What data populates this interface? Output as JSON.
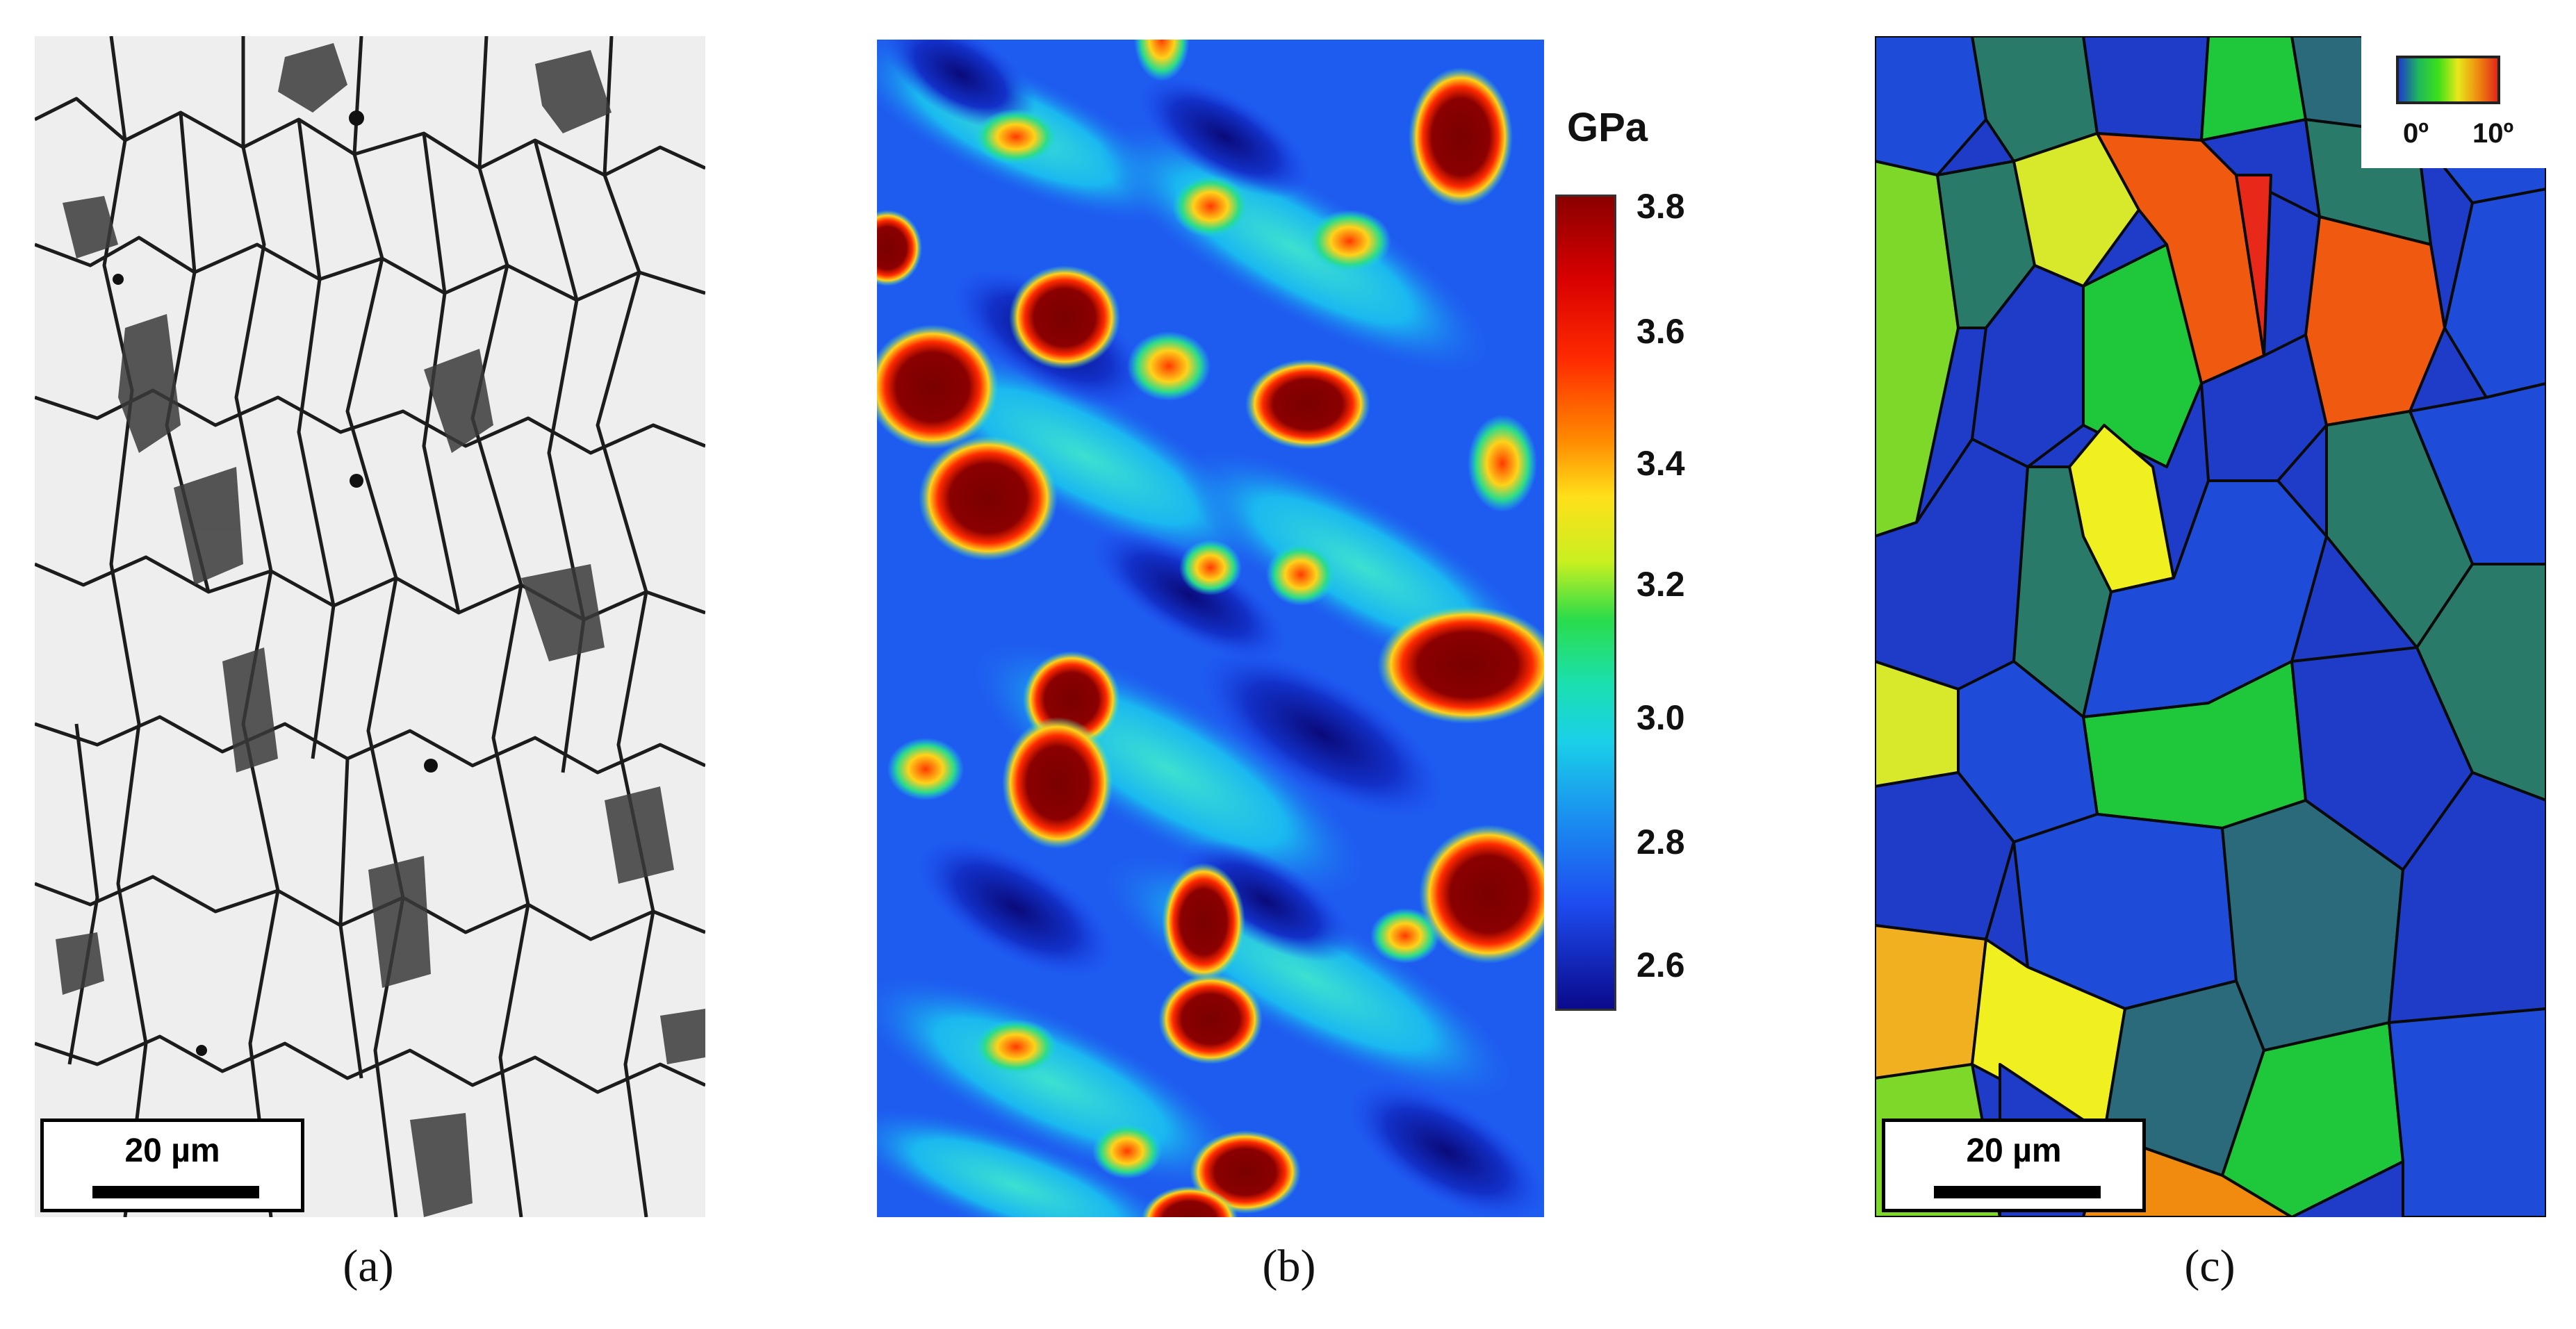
{
  "panels": {
    "a": {
      "caption": "(a)",
      "scale_bar": "20 µm"
    },
    "b": {
      "caption": "(b)",
      "colorbar": {
        "unit": "GPa",
        "ticks": [
          "3.8",
          "3.6",
          "3.4",
          "3.2",
          "3.0",
          "2.8",
          "2.6"
        ],
        "colors": [
          "#8b0000",
          "#ff2000",
          "#ffd21a",
          "#2bdc4a",
          "#1ad0e8",
          "#1e4cf0",
          "#0a0a8c"
        ]
      }
    },
    "c": {
      "caption": "(c)",
      "scale_bar": "20 µm",
      "legend": {
        "min": "0º",
        "max": "10º"
      }
    }
  }
}
